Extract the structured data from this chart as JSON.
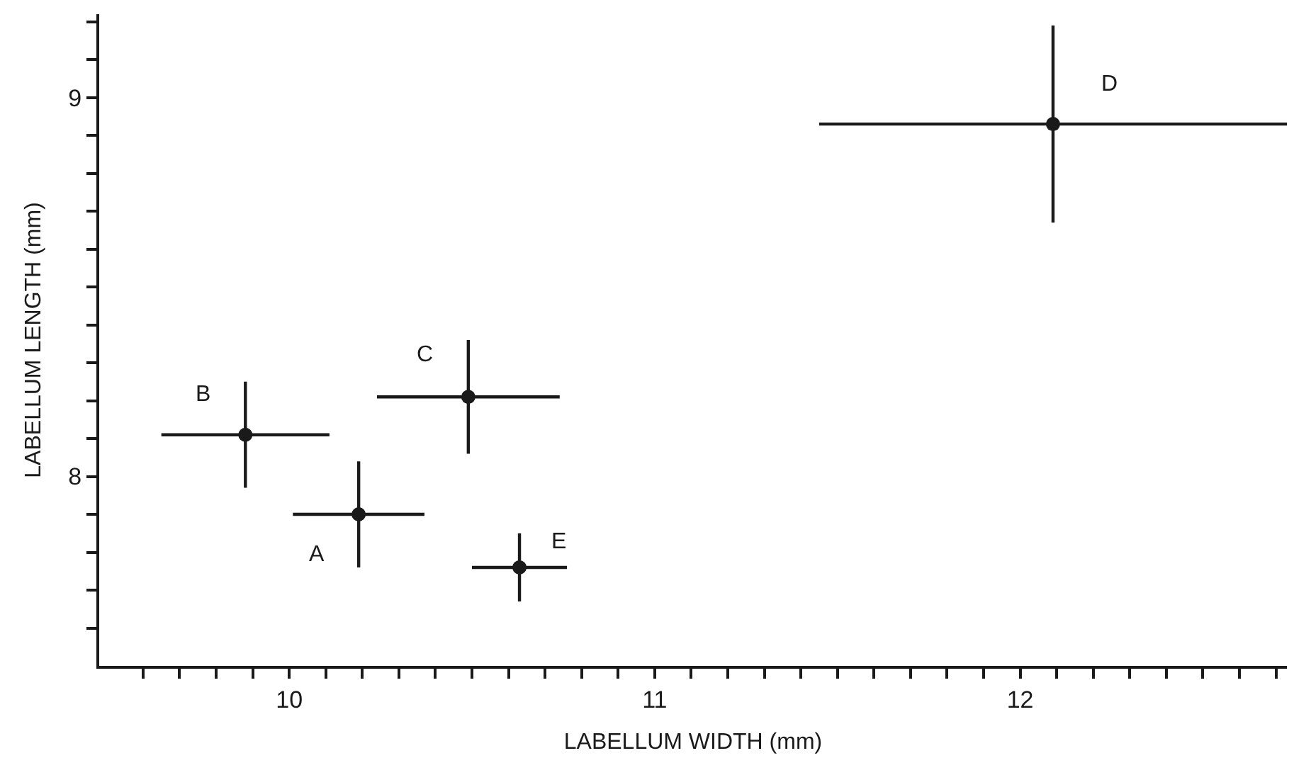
{
  "chart_data": {
    "type": "scatter",
    "xlabel": "LABELLUM WIDTH (mm)",
    "ylabel": "LABELLUM LENGTH (mm)",
    "x": [
      10.19,
      9.88,
      10.49,
      12.09,
      10.63
    ],
    "values": [
      7.9,
      8.11,
      8.21,
      8.93,
      7.76
    ],
    "errors": [
      0.14,
      0.14,
      0.15,
      0.26,
      0.09
    ],
    "xerrors": [
      0.18,
      0.23,
      0.25,
      0.64,
      0.13
    ],
    "color": "#1a1a1a",
    "marker": "circle",
    "annotations": [
      {
        "text": "A",
        "x": 10.19,
        "y": 7.9
      },
      {
        "text": "B",
        "x": 9.88,
        "y": 8.11
      },
      {
        "text": "C",
        "x": 10.49,
        "y": 8.21
      },
      {
        "text": "D",
        "x": 12.09,
        "y": 8.93
      },
      {
        "text": "E",
        "x": 10.63,
        "y": 7.76
      }
    ],
    "xlim": [
      9.48,
      12.73
    ],
    "ylim": [
      7.5,
      9.22
    ],
    "xticks": [
      {
        "value": 9.6,
        "label": null
      },
      {
        "value": 9.7,
        "label": null
      },
      {
        "value": 9.8,
        "label": null
      },
      {
        "value": 9.9,
        "label": null
      },
      10,
      {
        "value": 10.1,
        "label": null
      },
      {
        "value": 10.2,
        "label": null
      },
      {
        "value": 10.3,
        "label": null
      },
      {
        "value": 10.4,
        "label": null
      },
      {
        "value": 10.5,
        "label": null
      },
      {
        "value": 10.6,
        "label": null
      },
      {
        "value": 10.7,
        "label": null
      },
      {
        "value": 10.8,
        "label": null
      },
      {
        "value": 10.9,
        "label": null
      },
      11,
      {
        "value": 11.1,
        "label": null
      },
      {
        "value": 11.2,
        "label": null
      },
      {
        "value": 11.3,
        "label": null
      },
      {
        "value": 11.4,
        "label": null
      },
      {
        "value": 11.5,
        "label": null
      },
      {
        "value": 11.6,
        "label": null
      },
      {
        "value": 11.7,
        "label": null
      },
      {
        "value": 11.8,
        "label": null
      },
      {
        "value": 11.9,
        "label": null
      },
      12,
      {
        "value": 12.1,
        "label": null
      },
      {
        "value": 12.2,
        "label": null
      },
      {
        "value": 12.3,
        "label": null
      },
      {
        "value": 12.4,
        "label": null
      },
      {
        "value": 12.5,
        "label": null
      },
      {
        "value": 12.6,
        "label": null
      },
      {
        "value": 12.7,
        "label": null
      }
    ],
    "yticks": [
      {
        "value": 7.6,
        "label": null
      },
      {
        "value": 7.7,
        "label": null
      },
      {
        "value": 7.8,
        "label": null
      },
      {
        "value": 7.9,
        "label": null
      },
      8,
      {
        "value": 8.1,
        "label": null
      },
      {
        "value": 8.2,
        "label": null
      },
      {
        "value": 8.3,
        "label": null
      },
      {
        "value": 8.4,
        "label": null
      },
      {
        "value": 8.5,
        "label": null
      },
      {
        "value": 8.6,
        "label": null
      },
      {
        "value": 8.7,
        "label": null
      },
      {
        "value": 8.8,
        "label": null
      },
      {
        "value": 8.9,
        "label": null
      },
      9,
      {
        "value": 9.1,
        "label": null
      },
      {
        "value": 9.2,
        "label": null
      }
    ]
  }
}
